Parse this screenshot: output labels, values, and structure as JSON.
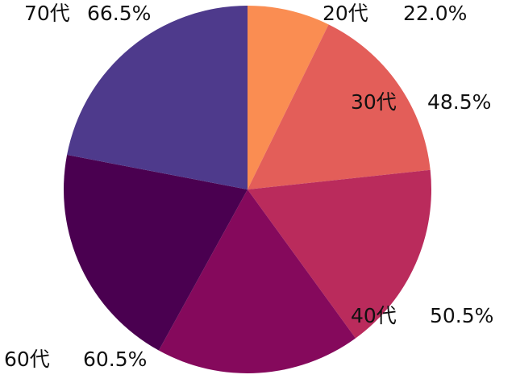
{
  "chart_data": {
    "type": "pie",
    "categories": [
      "20代",
      "30代",
      "40代",
      null,
      "60代",
      "70代"
    ],
    "values": [
      22.0,
      48.5,
      50.5,
      54.5,
      60.5,
      66.5
    ],
    "value_labels": [
      "22.0%",
      "48.5%",
      "50.5%",
      null,
      "60.5%",
      "66.5%"
    ],
    "colors": [
      "#fa8d52",
      "#e35e59",
      "#ba2b5c",
      "#85095c",
      "#4a0050",
      "#4e3a8c"
    ]
  }
}
